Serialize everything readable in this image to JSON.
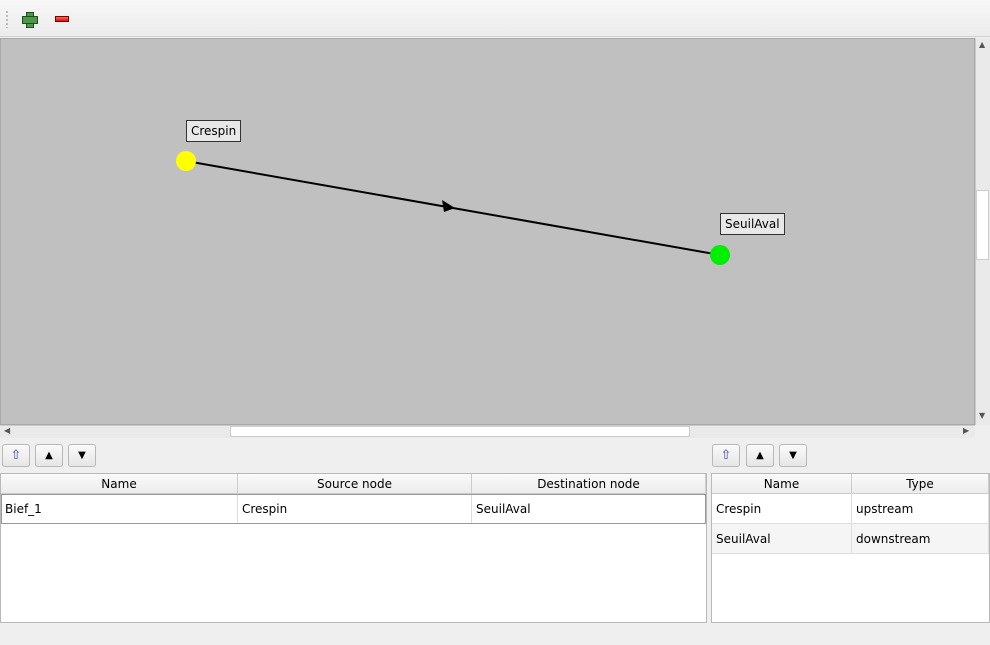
{
  "toolbar": {
    "add_icon": "plus-icon",
    "remove_icon": "minus-icon"
  },
  "graph": {
    "nodes": [
      {
        "name": "Crespin",
        "color": "#ffff00"
      },
      {
        "name": "SeuilAval",
        "color": "#00ee00"
      }
    ],
    "edges": [
      {
        "name": "Bief_1",
        "source": "Crespin",
        "destination": "SeuilAval"
      }
    ]
  },
  "reaches_table": {
    "columns": [
      "Name",
      "Source node",
      "Destination node"
    ],
    "rows": [
      [
        "Bief_1",
        "Crespin",
        "SeuilAval"
      ]
    ]
  },
  "nodes_table": {
    "columns": [
      "Name",
      "Type"
    ],
    "rows": [
      [
        "Crespin",
        "upstream"
      ],
      [
        "SeuilAval",
        "downstream"
      ]
    ]
  },
  "buttons": {
    "sort": "sort-icon",
    "up": "▲",
    "down": "▼"
  }
}
